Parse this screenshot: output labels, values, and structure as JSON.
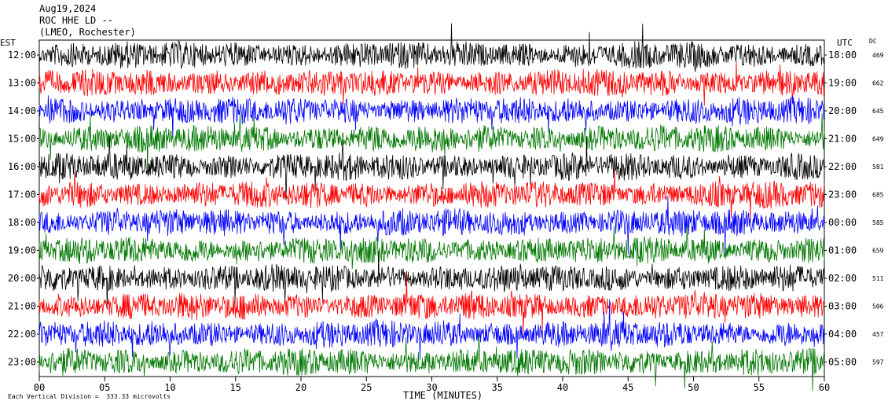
{
  "header": {
    "date": "Aug19,2024",
    "station": "ROC HHE LD --",
    "location": "(LMEO, Rochester)"
  },
  "left_axis_title": "EST",
  "right_axis_title": "UTC",
  "dc_title": "DC",
  "footer": "Each Vertical Division =  333.33 microvolts",
  "chart_data": {
    "type": "line",
    "title": "",
    "xlabel": "TIME (MINUTES)",
    "ylabel": "",
    "xlim": [
      0,
      60
    ],
    "x_ticks": [
      "00",
      "05",
      "10",
      "15",
      "20",
      "25",
      "30",
      "35",
      "40",
      "45",
      "50",
      "55",
      "60"
    ],
    "series": [
      {
        "est": "12:00",
        "utc": "18:00",
        "dc": "469",
        "color": "#000000"
      },
      {
        "est": "13:00",
        "utc": "19:00",
        "dc": "662",
        "color": "#ff0000"
      },
      {
        "est": "14:00",
        "utc": "20:00",
        "dc": "645",
        "color": "#0000ff"
      },
      {
        "est": "15:00",
        "utc": "21:00",
        "dc": "649",
        "color": "#007700"
      },
      {
        "est": "16:00",
        "utc": "22:00",
        "dc": "581",
        "color": "#000000"
      },
      {
        "est": "17:00",
        "utc": "23:00",
        "dc": "685",
        "color": "#ff0000"
      },
      {
        "est": "18:00",
        "utc": "00:00",
        "dc": "585",
        "color": "#0000ff"
      },
      {
        "est": "19:00",
        "utc": "01:00",
        "dc": "659",
        "color": "#007700"
      },
      {
        "est": "20:00",
        "utc": "02:00",
        "dc": "511",
        "color": "#000000"
      },
      {
        "est": "21:00",
        "utc": "03:00",
        "dc": "506",
        "color": "#ff0000"
      },
      {
        "est": "22:00",
        "utc": "04:00",
        "dc": "457",
        "color": "#0000ff"
      },
      {
        "est": "23:00",
        "utc": "05:00",
        "dc": "597",
        "color": "#007700"
      }
    ]
  }
}
